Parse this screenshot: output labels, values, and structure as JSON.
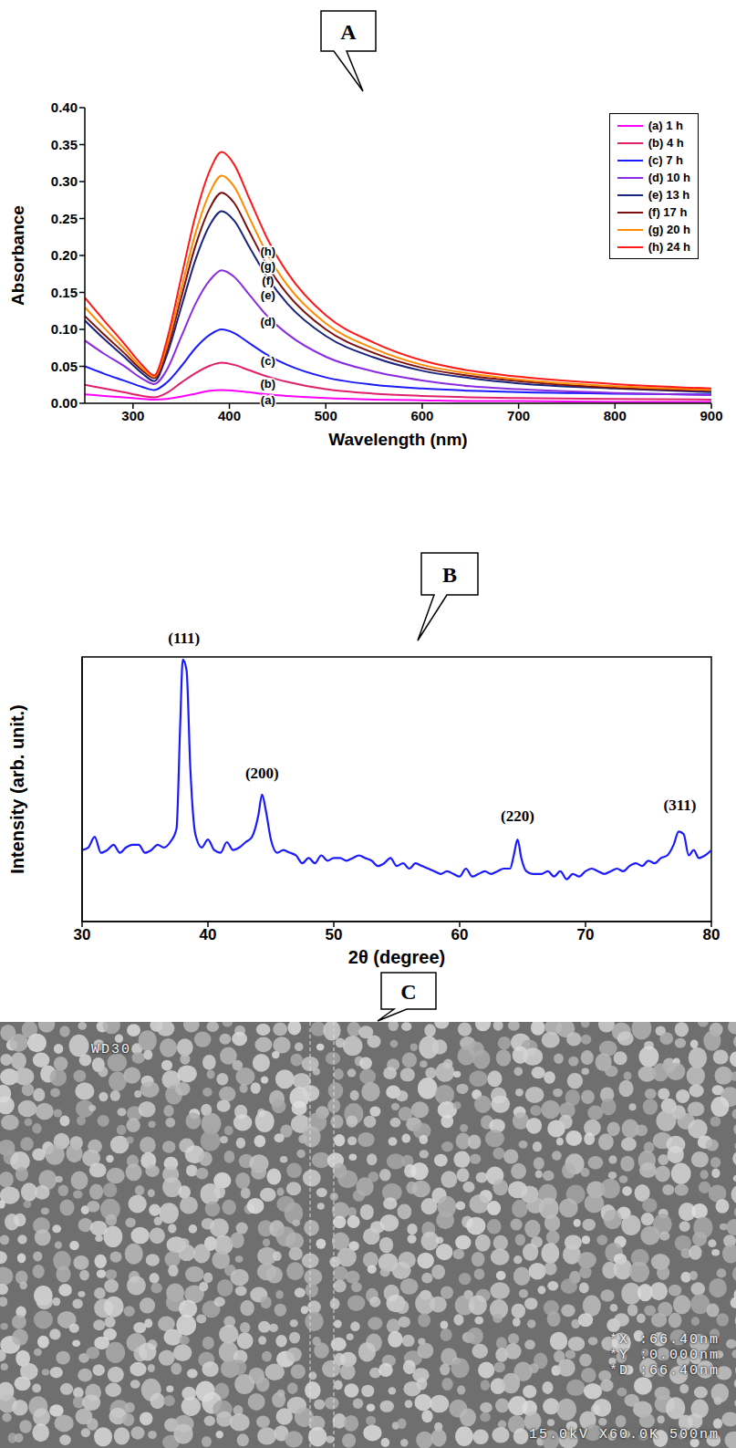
{
  "chart_data": [
    {
      "type": "line",
      "title": "A",
      "x_label": "Wavelength (nm)",
      "y_label": "Absorbance",
      "x": [
        250,
        270,
        290,
        310,
        322,
        335,
        350,
        365,
        380,
        392,
        405,
        420,
        440,
        460,
        500,
        550,
        600,
        650,
        700,
        800,
        900
      ],
      "series": [
        {
          "name": "(a) 1 h",
          "color": "#ff00ff",
          "values": [
            0.012,
            0.01,
            0.008,
            0.006,
            0.005,
            0.006,
            0.009,
            0.013,
            0.017,
            0.018,
            0.017,
            0.015,
            0.012,
            0.01,
            0.007,
            0.005,
            0.004,
            0.003,
            0.003,
            0.002,
            0.002
          ]
        },
        {
          "name": "(b) 4 h",
          "color": "#e0206a",
          "values": [
            0.025,
            0.02,
            0.015,
            0.01,
            0.008,
            0.014,
            0.028,
            0.041,
            0.051,
            0.055,
            0.052,
            0.045,
            0.036,
            0.029,
            0.019,
            0.013,
            0.01,
            0.008,
            0.007,
            0.006,
            0.005
          ]
        },
        {
          "name": "(c) 7 h",
          "color": "#1a1aff",
          "values": [
            0.05,
            0.04,
            0.031,
            0.022,
            0.018,
            0.028,
            0.05,
            0.075,
            0.093,
            0.1,
            0.095,
            0.082,
            0.065,
            0.052,
            0.035,
            0.025,
            0.02,
            0.017,
            0.015,
            0.013,
            0.012
          ]
        },
        {
          "name": "(d) 10 h",
          "color": "#8a2be2",
          "values": [
            0.085,
            0.067,
            0.051,
            0.033,
            0.026,
            0.045,
            0.09,
            0.135,
            0.167,
            0.18,
            0.171,
            0.148,
            0.117,
            0.094,
            0.063,
            0.043,
            0.031,
            0.023,
            0.019,
            0.014,
            0.011
          ]
        },
        {
          "name": "(e) 13 h",
          "color": "#1a237e",
          "values": [
            0.112,
            0.087,
            0.064,
            0.04,
            0.03,
            0.065,
            0.13,
            0.195,
            0.242,
            0.26,
            0.247,
            0.213,
            0.169,
            0.135,
            0.091,
            0.062,
            0.044,
            0.034,
            0.027,
            0.02,
            0.015
          ]
        },
        {
          "name": "(f) 17 h",
          "color": "#7b0f0f",
          "values": [
            0.118,
            0.093,
            0.069,
            0.044,
            0.034,
            0.071,
            0.143,
            0.214,
            0.265,
            0.285,
            0.271,
            0.234,
            0.185,
            0.148,
            0.1,
            0.068,
            0.048,
            0.037,
            0.03,
            0.021,
            0.017
          ]
        },
        {
          "name": "(g) 20 h",
          "color": "#ff8c00",
          "values": [
            0.13,
            0.102,
            0.075,
            0.047,
            0.036,
            0.077,
            0.154,
            0.231,
            0.286,
            0.308,
            0.293,
            0.253,
            0.2,
            0.16,
            0.108,
            0.074,
            0.052,
            0.04,
            0.032,
            0.023,
            0.018
          ]
        },
        {
          "name": "(h) 24 h",
          "color": "#ff1a1a",
          "values": [
            0.143,
            0.112,
            0.082,
            0.051,
            0.038,
            0.085,
            0.17,
            0.255,
            0.316,
            0.34,
            0.323,
            0.279,
            0.221,
            0.177,
            0.119,
            0.082,
            0.058,
            0.044,
            0.036,
            0.026,
            0.02
          ]
        }
      ],
      "xlim": [
        250,
        900
      ],
      "xticks": [
        300,
        400,
        500,
        600,
        700,
        800,
        900
      ],
      "ylim": [
        0,
        0.4
      ],
      "yticks": [
        {
          "value": 0,
          "label": "0.00"
        },
        {
          "value": 0.05,
          "label": "0.05"
        },
        {
          "value": 0.1,
          "label": "0.10"
        },
        {
          "value": 0.15,
          "label": "0.15"
        },
        {
          "value": 0.2,
          "label": "0.20"
        },
        {
          "value": 0.25,
          "label": "0.25"
        },
        {
          "value": 0.3,
          "label": "0.30"
        },
        {
          "value": 0.35,
          "label": "0.35"
        },
        {
          "value": 0.4,
          "label": "0.40"
        }
      ],
      "legend": "top-right",
      "annotations": [
        {
          "text": "(a)",
          "x": 440,
          "y": 0.004
        },
        {
          "text": "(b)",
          "x": 440,
          "y": 0.027
        },
        {
          "text": "(c)",
          "x": 440,
          "y": 0.058
        },
        {
          "text": "(d)",
          "x": 440,
          "y": 0.11
        },
        {
          "text": "(e)",
          "x": 440,
          "y": 0.146
        },
        {
          "text": "(f)",
          "x": 440,
          "y": 0.166
        },
        {
          "text": "(g)",
          "x": 440,
          "y": 0.186
        },
        {
          "text": "(h)",
          "x": 440,
          "y": 0.206
        }
      ]
    },
    {
      "type": "line",
      "title": "B",
      "x_label": "2θ (degree)",
      "y_label": "Intensity (arb. unit.)",
      "x": [
        30,
        30.5,
        31,
        31.5,
        32,
        32.5,
        33,
        33.5,
        34,
        34.5,
        35,
        35.5,
        36,
        36.5,
        37,
        37.5,
        37.8,
        38,
        38.3,
        38.6,
        39,
        39.5,
        40,
        40.5,
        41,
        41.5,
        42,
        42.5,
        43,
        43.5,
        44,
        44.3,
        44.6,
        45,
        45.5,
        46,
        46.5,
        47,
        47.5,
        48,
        48.5,
        49,
        49.5,
        50,
        50.5,
        51,
        51.5,
        52,
        52.5,
        53,
        53.5,
        54,
        54.5,
        55,
        55.5,
        56,
        56.5,
        57,
        57.5,
        58,
        58.5,
        59,
        59.5,
        60,
        60.5,
        61,
        61.5,
        62,
        62.5,
        63,
        63.5,
        64,
        64.3,
        64.6,
        64.9,
        65.3,
        65.8,
        66.5,
        67,
        67.5,
        68,
        68.5,
        69,
        69.5,
        70,
        70.5,
        71,
        71.5,
        72,
        72.5,
        73,
        73.5,
        74,
        74.5,
        75,
        75.5,
        76,
        76.5,
        77,
        77.4,
        77.8,
        78.2,
        78.6,
        79,
        79.5,
        80
      ],
      "series": [
        {
          "color": "#1a1aff",
          "values": [
            27,
            28,
            32,
            26,
            27,
            29,
            26,
            28,
            29,
            29,
            26,
            27,
            29,
            28,
            30,
            35,
            75,
            99,
            95,
            58,
            33,
            28,
            31,
            27,
            26,
            30,
            27,
            28,
            30,
            32,
            40,
            48,
            42,
            31,
            26,
            27,
            26,
            25,
            22,
            24,
            22,
            25,
            23,
            24,
            24,
            23,
            24,
            25,
            24,
            23,
            21,
            22,
            24,
            21,
            22,
            20,
            22,
            21,
            20,
            19,
            18,
            19,
            18,
            17,
            20,
            17,
            18,
            19,
            18,
            19,
            20,
            20,
            25,
            31,
            24,
            19,
            18,
            18,
            19,
            17,
            19,
            16,
            18,
            17,
            19,
            20,
            19,
            18,
            19,
            20,
            19,
            21,
            22,
            21,
            23,
            22,
            24,
            25,
            29,
            34,
            33,
            25,
            27,
            24,
            25,
            27
          ]
        }
      ],
      "xlim": [
        30,
        80
      ],
      "xticks": [
        30,
        40,
        50,
        60,
        70,
        80
      ],
      "ylim": [
        0,
        100
      ],
      "tick_labels": "x",
      "annotations": [
        {
          "text": "(111)",
          "x": 38.1,
          "y": 107
        },
        {
          "text": "(200)",
          "x": 44.3,
          "y": 56
        },
        {
          "text": "(220)",
          "x": 64.6,
          "y": 40
        },
        {
          "text": "(311)",
          "x": 77.5,
          "y": 44
        }
      ]
    }
  ],
  "micrograph": {
    "title": "C",
    "working_distance": "WD30",
    "measurements": [
      "*X :66.40nm",
      "*Y :0.000nm",
      "*D :66.40nm"
    ],
    "footer": "15.0kV X60.0K 500nm"
  }
}
